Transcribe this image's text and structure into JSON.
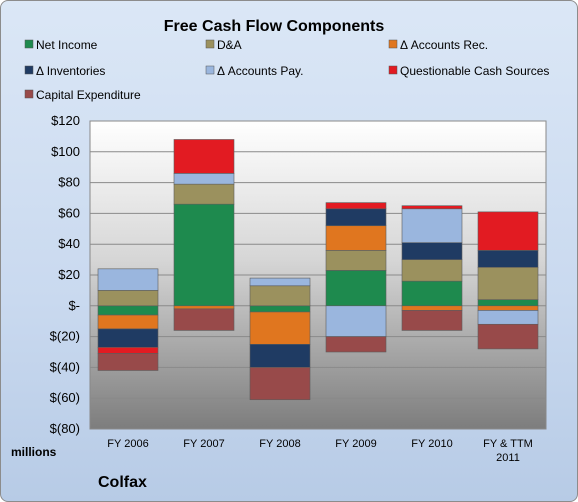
{
  "chart_data": {
    "type": "bar",
    "stacked": true,
    "title": "Free Cash Flow Components",
    "categories": [
      "FY 2006",
      "FY 2007",
      "FY 2008",
      "FY 2009",
      "FY 2010",
      "FY & TTM 2011"
    ],
    "series": [
      {
        "name": "Net Income",
        "color": "#1e8a4e",
        "values": [
          -6,
          66,
          -4,
          23,
          16,
          4
        ]
      },
      {
        "name": "D&A",
        "color": "#9b915e",
        "values": [
          10,
          13,
          13,
          13,
          14,
          21
        ]
      },
      {
        "name": "Δ Accounts Rec.",
        "color": "#e0761f",
        "values": [
          -9,
          -2,
          -21,
          16,
          -3,
          -3
        ]
      },
      {
        "name": "Δ Inventories",
        "color": "#1f3b63",
        "values": [
          -12,
          0,
          -15,
          11,
          11,
          11
        ]
      },
      {
        "name": "Δ Accounts Pay.",
        "color": "#9ab6de",
        "values": [
          14,
          7,
          5,
          -20,
          22,
          -9
        ]
      },
      {
        "name": "Questionable Cash Sources",
        "color": "#e21b22",
        "values": [
          -4,
          22,
          0,
          4,
          2,
          25
        ]
      },
      {
        "name": "Capital Expenditure",
        "color": "#984a4a",
        "values": [
          -11,
          -14,
          -21,
          -10,
          -13,
          -16
        ]
      }
    ],
    "y_ticks": [
      "$120",
      "$100",
      "$80",
      "$60",
      "$40",
      "$20",
      "$-",
      "$(20)",
      "$(40)",
      "$(60)",
      "$(80)"
    ],
    "ylim": [
      -80,
      120
    ],
    "ylabel": "millions",
    "legend_position": "top",
    "grid": true
  },
  "footer": {
    "company": "Colfax"
  }
}
